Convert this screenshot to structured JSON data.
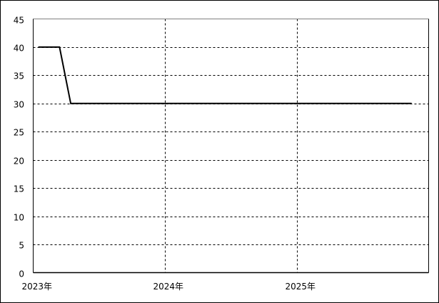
{
  "chart_data": {
    "type": "line",
    "title": "",
    "xlabel": "",
    "ylabel": "",
    "xlim": [
      "2023-01-01",
      "2026-01-01"
    ],
    "ylim": [
      0,
      45
    ],
    "yticks": [
      0,
      5,
      10,
      15,
      20,
      25,
      30,
      35,
      40,
      45
    ],
    "xticks": [
      {
        "date": "2023-01-01",
        "label": "2023年"
      },
      {
        "date": "2024-01-01",
        "label": "2024年"
      },
      {
        "date": "2025-01-01",
        "label": "2025年"
      }
    ],
    "grid": true,
    "series": [
      {
        "color": "#000000",
        "points": [
          {
            "x": "2023-01-15",
            "y": 40
          },
          {
            "x": "2023-03-15",
            "y": 40
          },
          {
            "x": "2023-04-15",
            "y": 30
          },
          {
            "x": "2025-11-15",
            "y": 30
          }
        ]
      }
    ]
  }
}
